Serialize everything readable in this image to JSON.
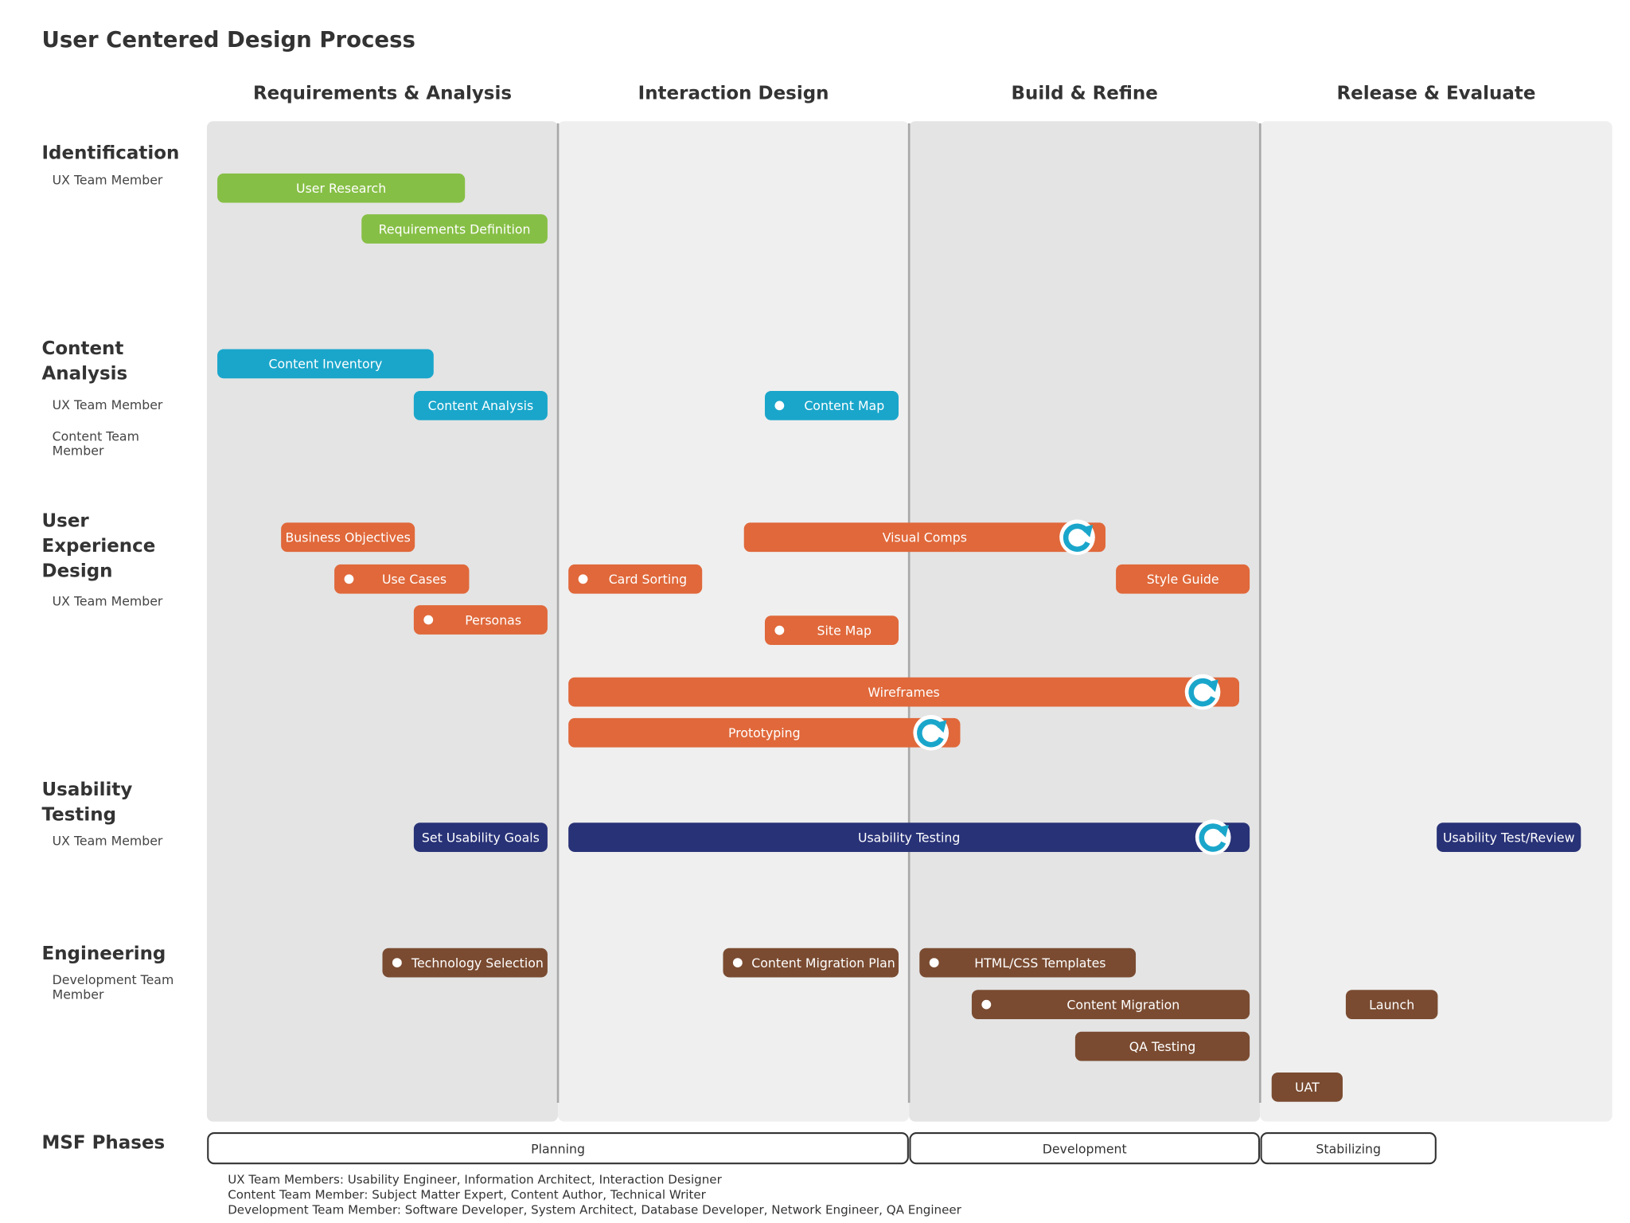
{
  "title": "User Centered Design Process",
  "columns": [
    "Requirements & Analysis",
    "Interaction Design",
    "Build & Refine",
    "Release & Evaluate"
  ],
  "rows": [
    {
      "label_lines": [
        "Identification"
      ],
      "roles": [
        [
          "UX Team Member"
        ]
      ]
    },
    {
      "label_lines": [
        "Content",
        "Analysis"
      ],
      "roles": [
        [
          "UX Team Member"
        ],
        [
          "Content Team",
          "Member"
        ]
      ]
    },
    {
      "label_lines": [
        "User",
        "Experience",
        "Design"
      ],
      "roles": [
        [
          "UX Team Member"
        ]
      ]
    },
    {
      "label_lines": [
        "Usability",
        "Testing"
      ],
      "roles": [
        [
          "UX Team Member"
        ]
      ]
    },
    {
      "label_lines": [
        "Engineering"
      ],
      "roles": [
        [
          "Development Team",
          "Member"
        ]
      ]
    }
  ],
  "tasks": [
    "User Research",
    "Requirements Definition",
    "Content Inventory",
    "Content Analysis",
    "Content Map",
    "Business Objectives",
    "Use Cases",
    "Personas",
    "Visual Comps",
    "Card Sorting",
    "Style Guide",
    "Site Map",
    "Wireframes",
    "Prototyping",
    "Set Usability Goals",
    "Usability Testing",
    "Usability Test/Review",
    "Technology Selection",
    "Content Migration Plan",
    "HTML/CSS Templates",
    "Content Migration",
    "Launch",
    "QA Testing",
    "UAT"
  ],
  "msf": {
    "label": "MSF Phases",
    "phases": [
      "Planning",
      "Development",
      "Stabilizing"
    ]
  },
  "notes": [
    "UX Team Members: Usability Engineer, Information Architect, Interaction Designer",
    "Content Team Member: Subject Matter Expert, Content Author, Technical Writer",
    "Development Team Member: Software Developer, System Architect, Database Developer, Network Engineer, QA Engineer"
  ]
}
